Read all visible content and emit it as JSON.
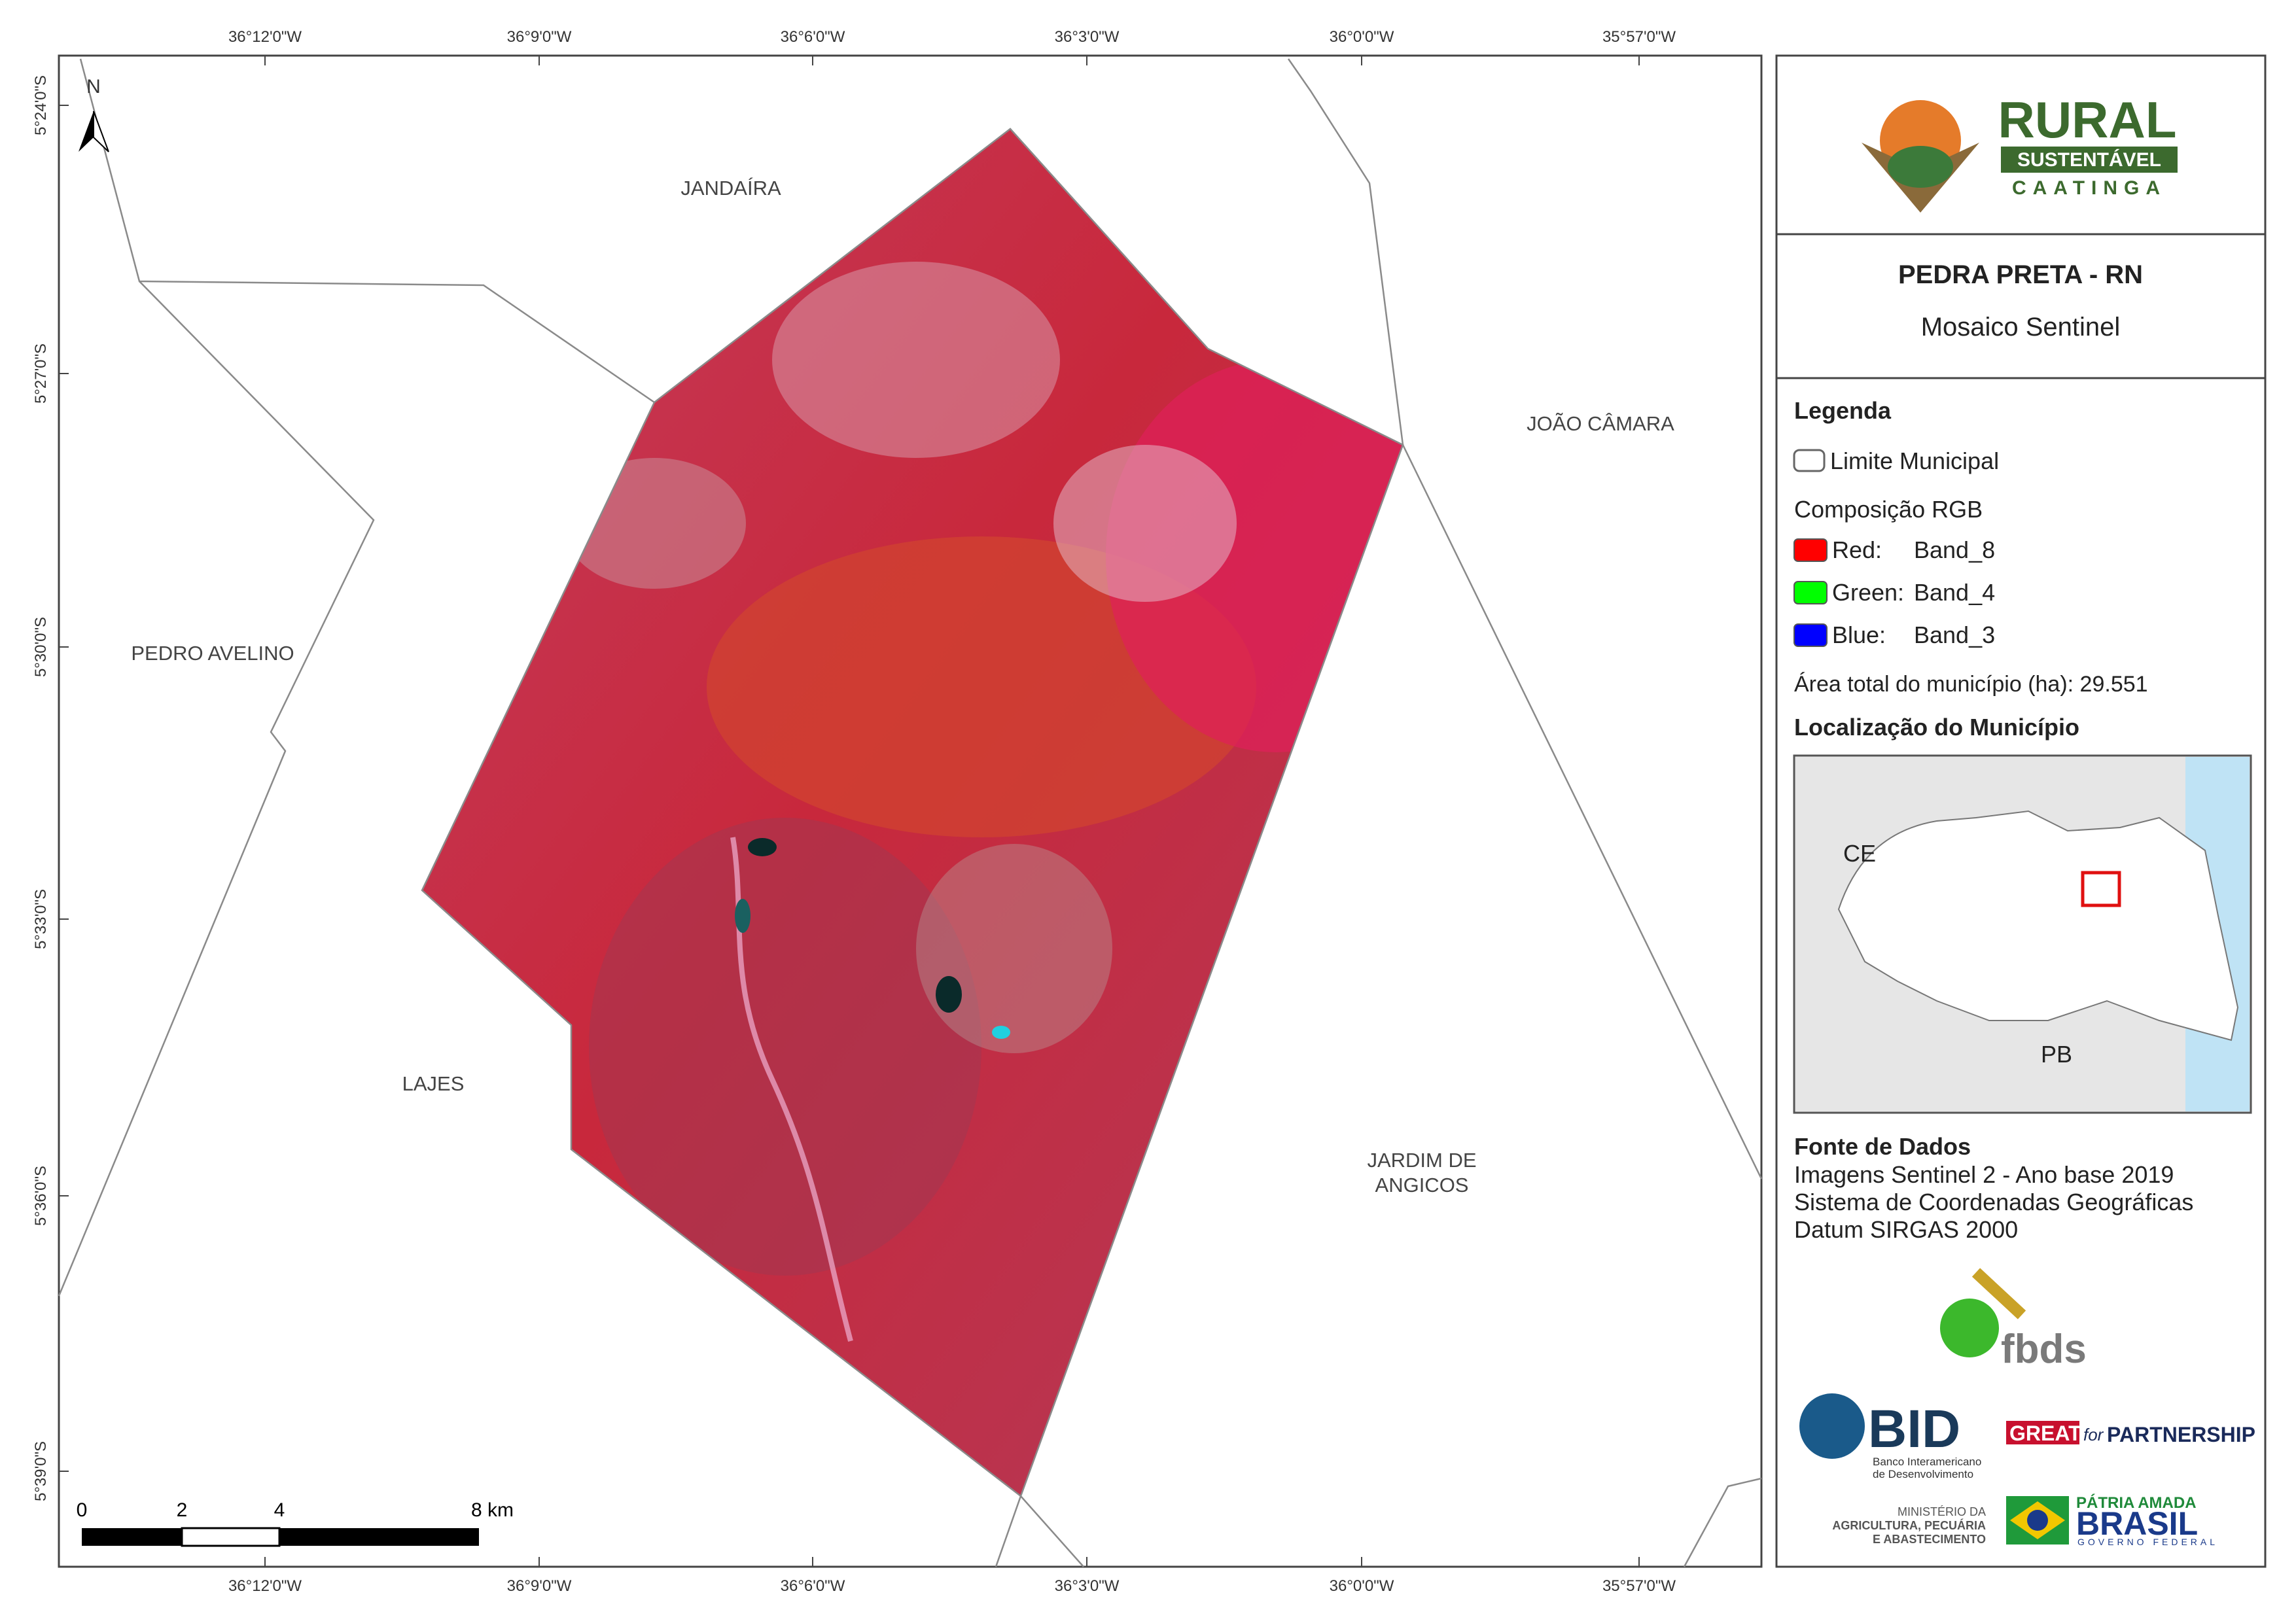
{
  "map": {
    "top_labels": [
      "36°12'0\"W",
      "36°9'0\"W",
      "36°6'0\"W",
      "36°3'0\"W",
      "36°0'0\"W",
      "35°57'0\"W"
    ],
    "bottom_labels": [
      "36°12'0\"W",
      "36°9'0\"W",
      "36°6'0\"W",
      "36°3'0\"W",
      "36°0'0\"W",
      "35°57'0\"W"
    ],
    "left_labels": [
      "5°24'0\"S",
      "5°27'0\"S",
      "5°30'0\"S",
      "5°33'0\"S",
      "5°36'0\"S",
      "5°39'0\"S"
    ],
    "north": "N",
    "places": [
      "JANDAÍRA",
      "PEDRO AVELINO",
      "LAJES",
      "JOÃO CÂMARA",
      "JARDIM DE",
      "ANGICOS"
    ],
    "scale_labels": [
      "0",
      "2",
      "4",
      "8 km"
    ]
  },
  "panel": {
    "logo": {
      "rural": "RURAL",
      "sustentavel": "SUSTENTÁVEL",
      "caatinga": "CAATINGA"
    },
    "title": "PEDRA PRETA - RN",
    "subtitle": "Mosaico Sentinel",
    "legend": {
      "heading": "Legenda",
      "boundary": "Limite Municipal",
      "composition": "Composição RGB",
      "bands": [
        {
          "channel": "Red:",
          "band": "Band_8",
          "color": "#ff0000"
        },
        {
          "channel": "Green:",
          "band": "Band_4",
          "color": "#00ff00"
        },
        {
          "channel": "Blue:",
          "band": "Band_3",
          "color": "#0000ff"
        }
      ],
      "area": "Área total do município (ha): 29.551",
      "location": "Localização do Município",
      "inset_labels": [
        "CE",
        "PB"
      ]
    },
    "sources": {
      "heading": "Fonte de Dados",
      "lines": [
        "Imagens Sentinel 2 - Ano base 2019",
        "Sistema de Coordenadas Geográficas",
        "Datum SIRGAS 2000"
      ]
    },
    "partners": {
      "fbds": "fbds",
      "bid": "BID",
      "bid_sub": [
        "Banco Interamericano",
        "de Desenvolvimento"
      ],
      "great": "GREAT",
      "for": "for",
      "partnership": "PARTNERSHIP",
      "ministry": [
        "MINISTÉRIO DA",
        "AGRICULTURA, PECUÁRIA",
        "E ABASTECIMENTO"
      ],
      "patria": "PÁTRIA AMADA",
      "brasil": "BRASIL",
      "governo": "GOVERNO FEDERAL"
    }
  }
}
